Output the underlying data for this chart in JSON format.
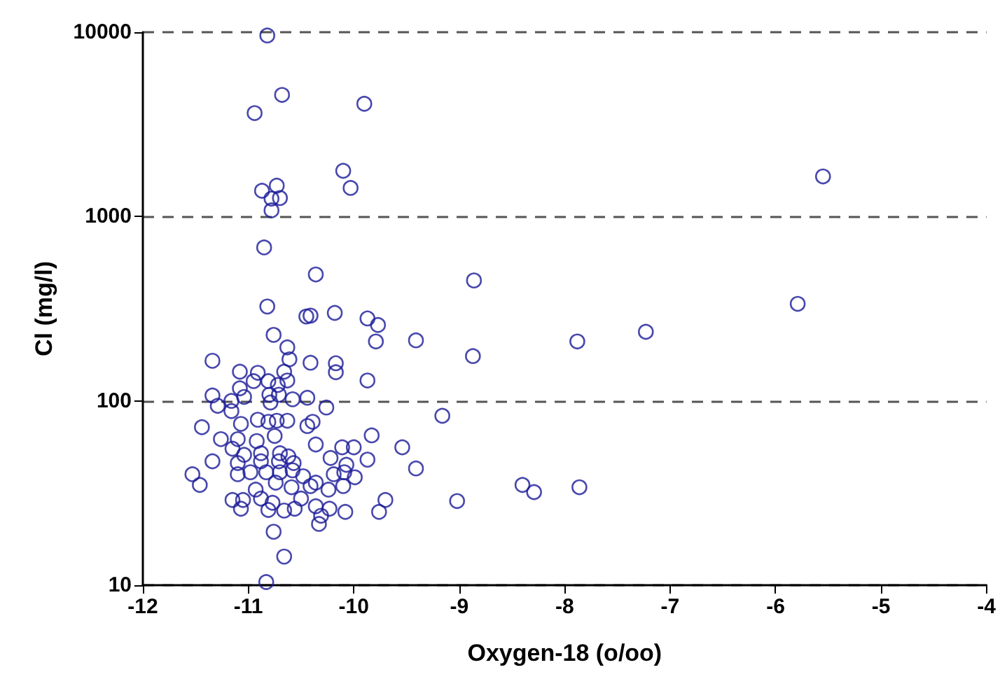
{
  "chart_data": {
    "type": "scatter",
    "xlabel": "Oxygen-18 (o/oo)",
    "ylabel": "Cl (mg/l)",
    "xlim": [
      -12,
      -4
    ],
    "xticks": [
      -12,
      -11,
      -10,
      -9,
      -8,
      -7,
      -6,
      -5,
      -4
    ],
    "ylim": [
      10,
      10000
    ],
    "yticks": [
      10,
      100,
      1000,
      10000
    ],
    "log": "y",
    "grid": "y",
    "marker": "circle",
    "series": [
      {
        "color": "#1a1a99",
        "x": [
          -10.82,
          -10.68,
          -10.94,
          -9.9,
          -10.1,
          -10.03,
          -10.87,
          -10.73,
          -10.78,
          -10.7,
          -10.78,
          -10.85,
          -10.36,
          -10.82,
          -10.45,
          -10.41,
          -10.18,
          -9.87,
          -9.77,
          -9.79,
          -9.41,
          -7.88,
          -8.86,
          -10.76,
          -10.63,
          -7.23,
          -5.79,
          -5.55,
          -7.86,
          -8.87,
          -9.87,
          -9.16,
          -9.83,
          -9.54,
          -10.11,
          -10.0,
          -9.87,
          -9.41,
          -8.4,
          -8.29,
          -9.02,
          -9.7,
          -9.76,
          -10.08,
          -11.34,
          -11.08,
          -10.91,
          -10.95,
          -11.08,
          -10.81,
          -10.66,
          -10.63,
          -10.61,
          -10.72,
          -10.41,
          -10.17,
          -10.17,
          -11.34,
          -11.29,
          -11.16,
          -11.04,
          -11.16,
          -10.8,
          -10.79,
          -10.71,
          -10.58,
          -10.44,
          -10.26,
          -11.44,
          -11.07,
          -10.91,
          -10.81,
          -10.73,
          -10.63,
          -10.44,
          -10.39,
          -11.26,
          -11.1,
          -10.92,
          -10.75,
          -10.36,
          -11.15,
          -11.04,
          -10.88,
          -10.7,
          -10.62,
          -11.34,
          -11.1,
          -10.88,
          -10.71,
          -10.57,
          -10.22,
          -10.07,
          -11.53,
          -11.46,
          -11.1,
          -10.98,
          -10.83,
          -10.7,
          -10.58,
          -10.48,
          -10.36,
          -10.19,
          -10.09,
          -9.99,
          -10.93,
          -10.74,
          -10.59,
          -10.41,
          -10.24,
          -10.1,
          -11.15,
          -11.05,
          -11.07,
          -10.88,
          -10.77,
          -10.81,
          -10.66,
          -10.56,
          -10.5,
          -10.36,
          -10.31,
          -10.33,
          -10.23,
          -10.76,
          -10.66,
          -10.83
        ],
        "values": [
          9600,
          4570,
          3640,
          4090,
          1770,
          1430,
          1380,
          1470,
          1250,
          1260,
          1080,
          680,
          485,
          325,
          287,
          290,
          300,
          280,
          258,
          210,
          213,
          210,
          450,
          228,
          195,
          237,
          336,
          1650,
          34,
          175,
          129,
          83,
          65,
          56,
          56,
          56,
          48,
          43,
          35,
          32,
          28.6,
          29,
          25,
          25,
          165,
          144,
          142,
          128,
          117,
          128,
          144,
          129,
          168,
          122,
          161,
          160,
          143,
          107,
          94,
          100,
          105,
          88,
          108,
          98,
          108,
          102,
          104,
          92,
          72,
          75,
          79,
          77,
          78,
          78,
          73,
          77,
          62,
          62,
          60.5,
          64.5,
          58,
          55,
          51,
          52,
          52,
          50,
          47,
          46,
          47,
          47,
          46,
          49,
          45,
          40,
          35,
          40,
          41,
          41,
          41,
          42,
          39,
          36,
          40,
          41,
          38.5,
          33,
          36,
          34,
          34.5,
          33,
          34.5,
          29,
          29,
          26,
          29.5,
          28,
          25.6,
          25.4,
          26,
          29.5,
          26.8,
          23.8,
          21.5,
          26,
          19.5,
          14.3,
          10.4
        ]
      }
    ]
  }
}
